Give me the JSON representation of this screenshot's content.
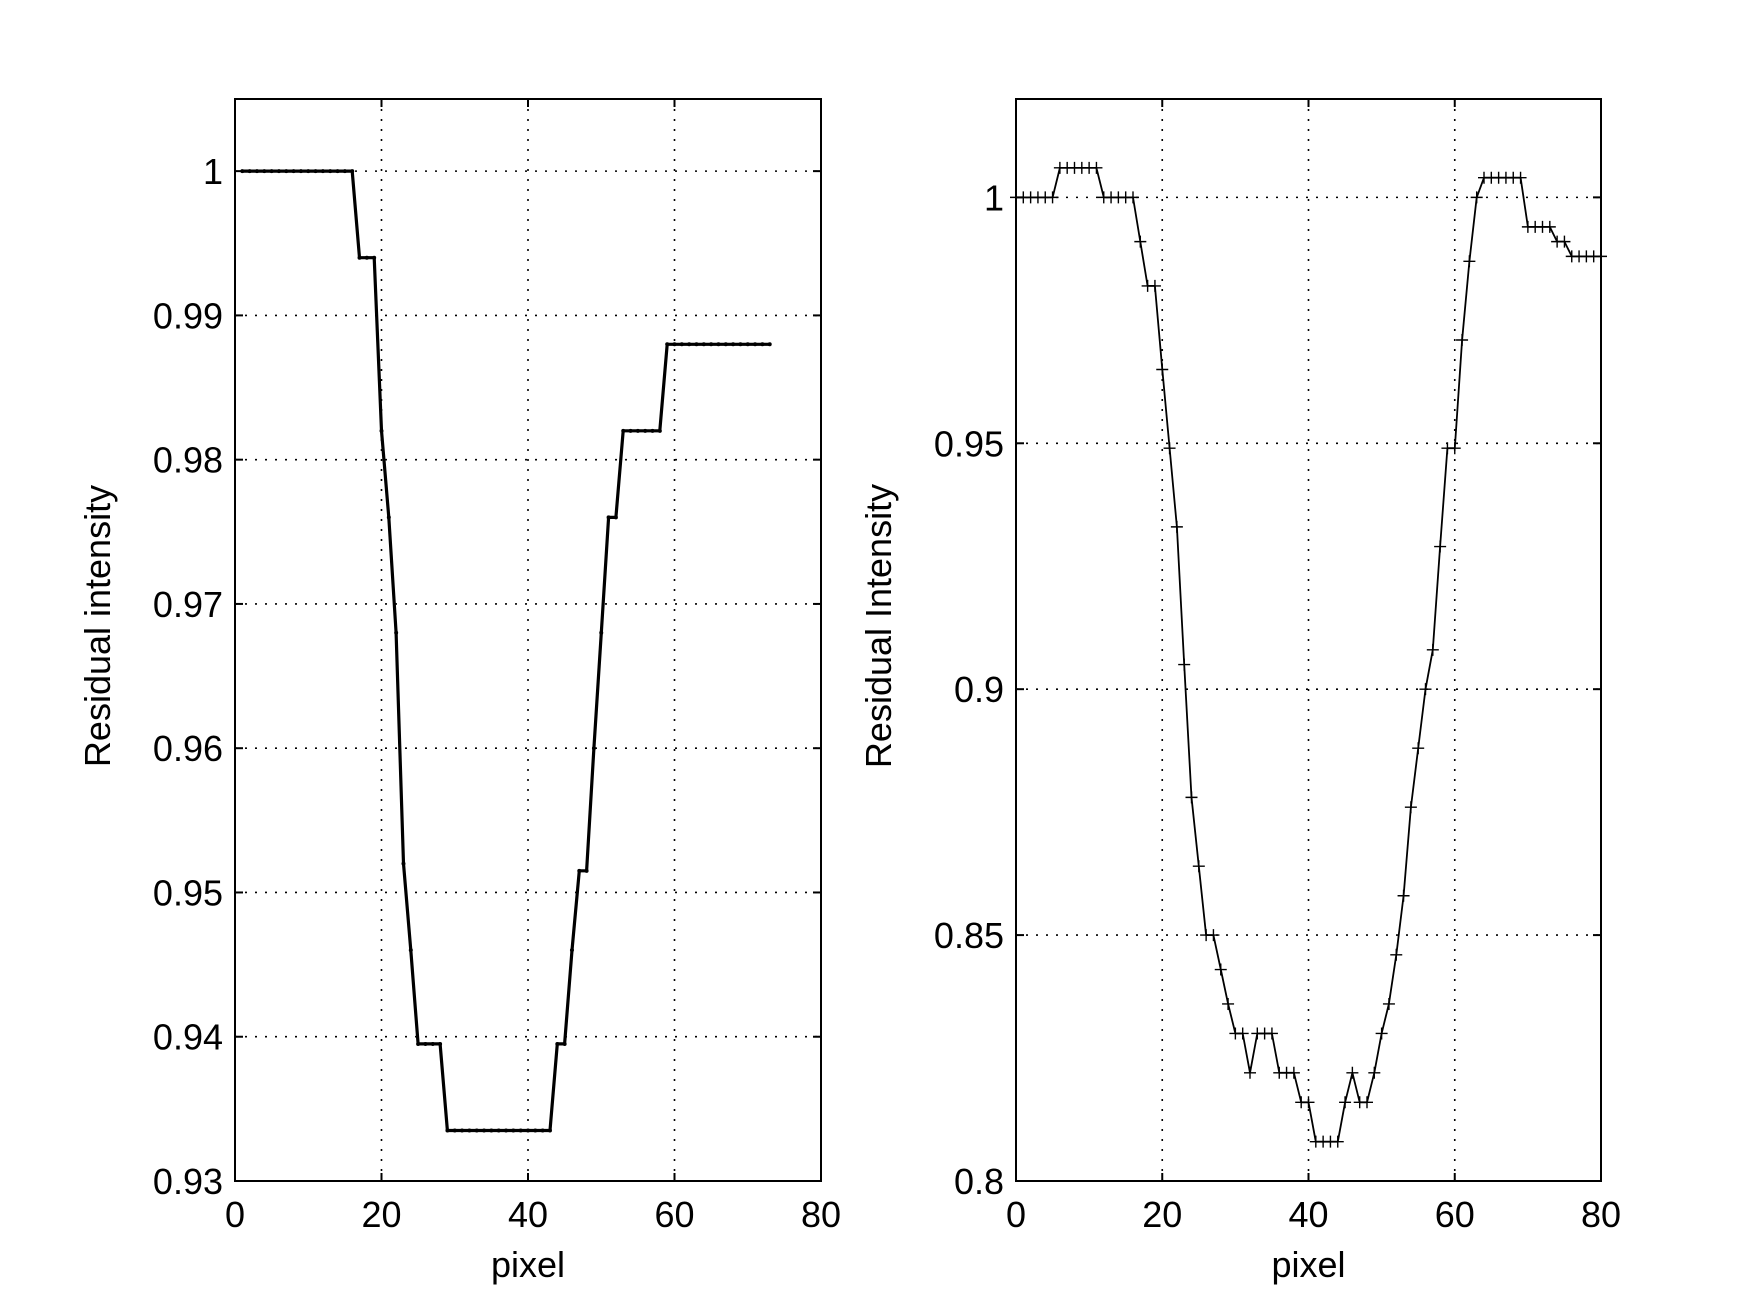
{
  "chart_data": [
    {
      "type": "line",
      "xlabel": "pixel",
      "ylabel": "Residual intensity",
      "xlim": [
        0,
        80
      ],
      "ylim": [
        0.93,
        1.005
      ],
      "xticks": [
        0,
        20,
        40,
        60,
        80
      ],
      "xtick_labels": [
        "0",
        "20",
        "40",
        "60",
        "80"
      ],
      "yticks": [
        0.93,
        0.94,
        0.95,
        0.96,
        0.97,
        0.98,
        0.99,
        1.0
      ],
      "ytick_labels": [
        "0.93",
        "0.94",
        "0.95",
        "0.96",
        "0.97",
        "0.98",
        "0.99",
        "1"
      ],
      "grid": true,
      "line_color": "#000000",
      "marker": "point",
      "series": [
        {
          "x": [
            1,
            2,
            3,
            4,
            5,
            6,
            7,
            8,
            9,
            10,
            11,
            12,
            13,
            14,
            15,
            16,
            17,
            18,
            19,
            20,
            21,
            22,
            23,
            24,
            25,
            26,
            27,
            28,
            29,
            30,
            31,
            32,
            33,
            34,
            35,
            36,
            37,
            38,
            39,
            40,
            41,
            42,
            43,
            44,
            45,
            46,
            47,
            48,
            49,
            50,
            51,
            52,
            53,
            54,
            55,
            56,
            57,
            58,
            59,
            60,
            61,
            62,
            63,
            64,
            65,
            66,
            67,
            68,
            69,
            70,
            71,
            72,
            73
          ],
          "y": [
            1.0,
            1.0,
            1.0,
            1.0,
            1.0,
            1.0,
            1.0,
            1.0,
            1.0,
            1.0,
            1.0,
            1.0,
            1.0,
            1.0,
            1.0,
            1.0,
            0.994,
            0.994,
            0.994,
            0.982,
            0.976,
            0.968,
            0.952,
            0.946,
            0.9395,
            0.9395,
            0.9395,
            0.9395,
            0.9335,
            0.9335,
            0.9335,
            0.9335,
            0.9335,
            0.9335,
            0.9335,
            0.9335,
            0.9335,
            0.9335,
            0.9335,
            0.9335,
            0.9335,
            0.9335,
            0.9335,
            0.9395,
            0.9395,
            0.946,
            0.9515,
            0.9515,
            0.96,
            0.968,
            0.976,
            0.976,
            0.982,
            0.982,
            0.982,
            0.982,
            0.982,
            0.982,
            0.988,
            0.988,
            0.988,
            0.988,
            0.988,
            0.988,
            0.988,
            0.988,
            0.988,
            0.988,
            0.988,
            0.988,
            0.988,
            0.988,
            0.988
          ]
        }
      ]
    },
    {
      "type": "line",
      "xlabel": "pixel",
      "ylabel": "Residual Intensity",
      "xlim": [
        0,
        80
      ],
      "ylim": [
        0.8,
        1.02
      ],
      "xticks": [
        0,
        20,
        40,
        60,
        80
      ],
      "xtick_labels": [
        "0",
        "20",
        "40",
        "60",
        "80"
      ],
      "yticks": [
        0.8,
        0.85,
        0.9,
        0.95,
        1.0
      ],
      "ytick_labels": [
        "0.8",
        "0.85",
        "0.9",
        "0.95",
        "1"
      ],
      "grid": true,
      "line_color": "#000000",
      "marker": "plus",
      "series": [
        {
          "x": [
            0,
            1,
            2,
            3,
            4,
            5,
            6,
            7,
            8,
            9,
            10,
            11,
            12,
            13,
            14,
            15,
            16,
            17,
            18,
            19,
            20,
            21,
            22,
            23,
            24,
            25,
            26,
            27,
            28,
            29,
            30,
            31,
            32,
            33,
            34,
            35,
            36,
            37,
            38,
            39,
            40,
            41,
            42,
            43,
            44,
            45,
            46,
            47,
            48,
            49,
            50,
            51,
            52,
            53,
            54,
            55,
            56,
            57,
            58,
            59,
            60,
            61,
            62,
            63,
            64,
            65,
            66,
            67,
            68,
            69,
            70,
            71,
            72,
            73,
            74,
            75,
            76,
            77,
            78,
            79,
            80
          ],
          "y": [
            1.0,
            1.0,
            1.0,
            1.0,
            1.0,
            1.0,
            1.006,
            1.006,
            1.006,
            1.006,
            1.006,
            1.006,
            1.0,
            1.0,
            1.0,
            1.0,
            1.0,
            0.991,
            0.982,
            0.982,
            0.965,
            0.949,
            0.933,
            0.905,
            0.878,
            0.864,
            0.85,
            0.85,
            0.843,
            0.836,
            0.83,
            0.83,
            0.822,
            0.83,
            0.83,
            0.83,
            0.822,
            0.822,
            0.822,
            0.816,
            0.816,
            0.808,
            0.808,
            0.808,
            0.808,
            0.816,
            0.822,
            0.816,
            0.816,
            0.822,
            0.83,
            0.836,
            0.846,
            0.858,
            0.876,
            0.888,
            0.9,
            0.908,
            0.929,
            0.949,
            0.949,
            0.971,
            0.987,
            1.0,
            1.004,
            1.004,
            1.004,
            1.004,
            1.004,
            1.004,
            0.994,
            0.994,
            0.994,
            0.994,
            0.991,
            0.991,
            0.988,
            0.988,
            0.988,
            0.988,
            0.988
          ]
        }
      ]
    }
  ]
}
